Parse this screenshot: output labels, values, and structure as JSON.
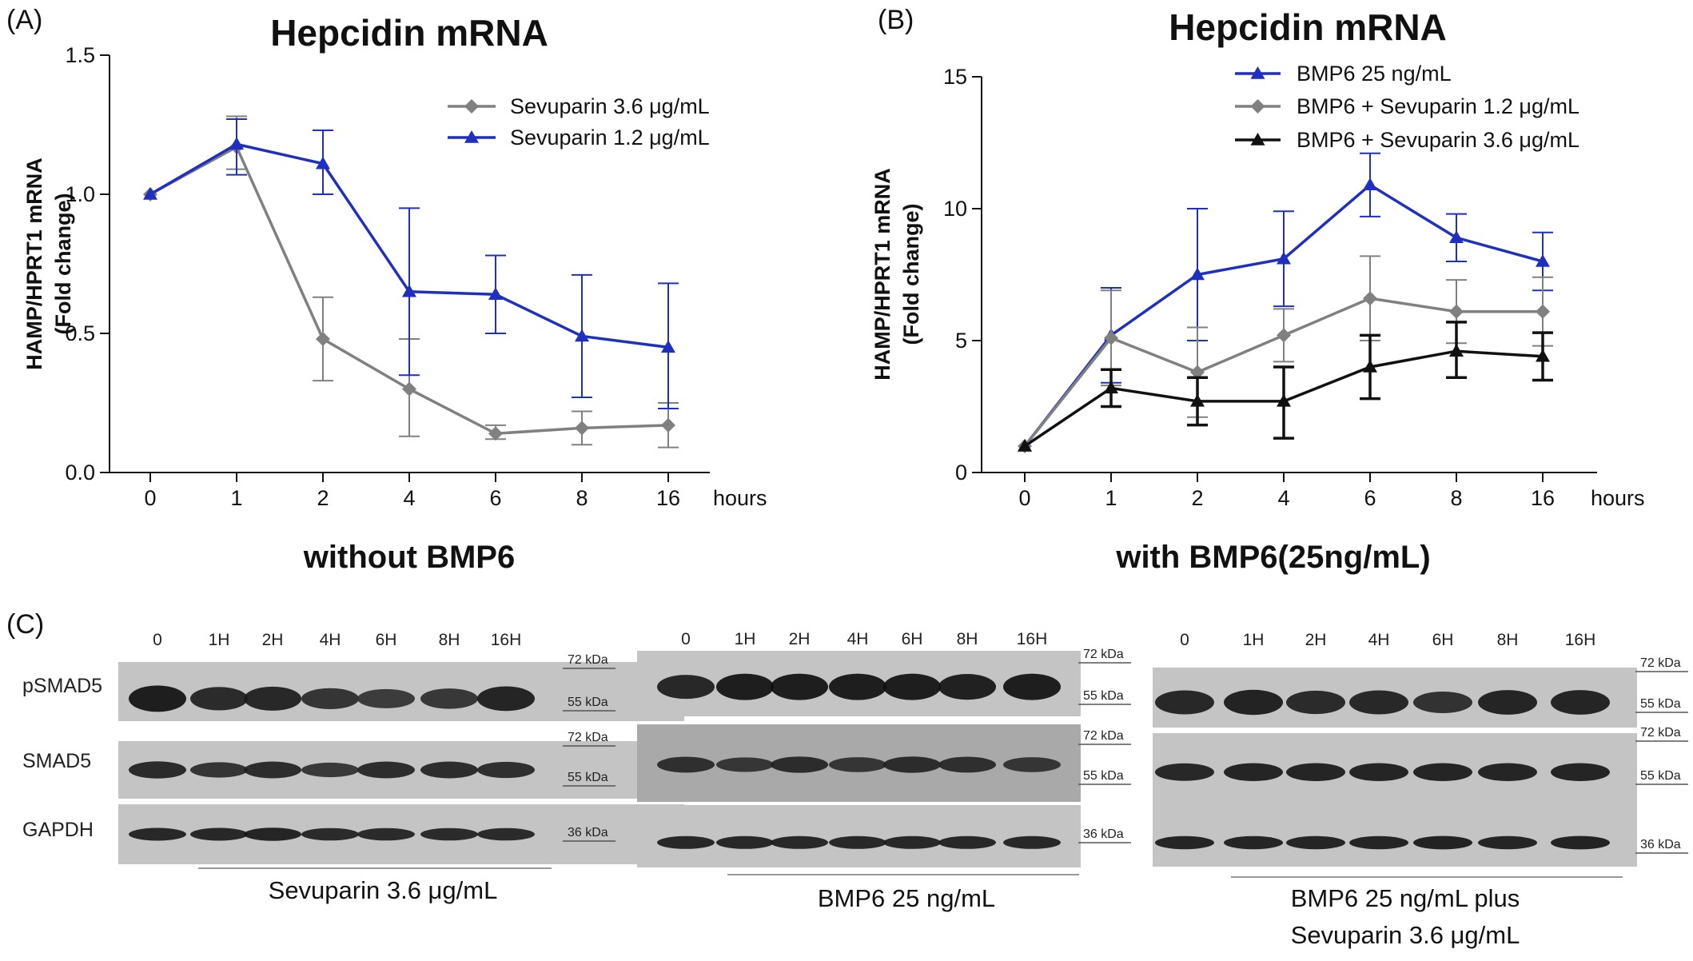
{
  "chart_data": [
    {
      "panel": "(A)",
      "type": "line",
      "title": "Hepcidin mRNA",
      "subtitle": "without BMP6",
      "ylabel_lines": [
        "HAMP/HPRT1 mRNA",
        "(Fold change)"
      ],
      "xlabel": "hours",
      "categories": [
        "0",
        "1",
        "2",
        "4",
        "6",
        "8",
        "16"
      ],
      "ylim": [
        0,
        1.5
      ],
      "yticks": [
        0,
        0.5,
        1.0,
        1.5
      ],
      "ytick_labels": [
        "0.0",
        "0.5",
        "1.0",
        "1.5"
      ],
      "legend_placement": "top-right",
      "series": [
        {
          "name": "Sevuparin 3.6 μg/mL",
          "color": "#808080",
          "marker": "diamond",
          "legend_order": 1,
          "values": [
            1.0,
            1.17,
            0.48,
            0.3,
            0.14,
            0.16,
            0.17
          ],
          "err_upper": [
            1.0,
            1.28,
            0.63,
            0.48,
            0.17,
            0.22,
            0.25
          ],
          "err_lower": [
            1.0,
            1.09,
            0.33,
            0.13,
            0.12,
            0.1,
            0.09
          ]
        },
        {
          "name": "Sevuparin 1.2 μg/mL",
          "color": "#1f2fbf",
          "marker": "triangle",
          "legend_order": 2,
          "values": [
            1.0,
            1.18,
            1.11,
            0.65,
            0.64,
            0.49,
            0.45
          ],
          "err_upper": [
            1.0,
            1.27,
            1.23,
            0.95,
            0.78,
            0.71,
            0.68
          ],
          "err_lower": [
            1.0,
            1.07,
            1.0,
            0.35,
            0.5,
            0.27,
            0.23
          ]
        }
      ]
    },
    {
      "panel": "(B)",
      "type": "line",
      "title": "Hepcidin mRNA",
      "subtitle": "with BMP6(25ng/mL)",
      "ylabel_lines": [
        "HAMP/HPRT1 mRNA",
        "(Fold change)"
      ],
      "xlabel": "hours",
      "categories": [
        "0",
        "1",
        "2",
        "4",
        "6",
        "8",
        "16"
      ],
      "ylim": [
        0,
        15
      ],
      "yticks": [
        0,
        5,
        10,
        15
      ],
      "ytick_labels": [
        "0",
        "5",
        "10",
        "15"
      ],
      "legend_placement": "top-right",
      "series": [
        {
          "name": "BMP6 25 ng/mL",
          "color": "#1f2fbf",
          "marker": "triangle",
          "legend_order": 1,
          "values": [
            1.0,
            5.2,
            7.5,
            8.1,
            10.9,
            8.9,
            8.0
          ],
          "err_upper": [
            1.0,
            7.0,
            10.0,
            9.9,
            12.1,
            9.8,
            9.1
          ],
          "err_lower": [
            1.0,
            3.4,
            5.0,
            6.3,
            9.7,
            8.0,
            6.9
          ]
        },
        {
          "name": "BMP6 + Sevuparin 1.2 μg/mL",
          "color": "#808080",
          "marker": "diamond",
          "legend_order": 2,
          "values": [
            1.0,
            5.1,
            3.8,
            5.2,
            6.6,
            6.1,
            6.1
          ],
          "err_upper": [
            1.0,
            6.9,
            5.5,
            6.2,
            8.2,
            7.3,
            7.4
          ],
          "err_lower": [
            1.0,
            3.3,
            2.1,
            4.2,
            5.0,
            4.9,
            4.8
          ]
        },
        {
          "name": "BMP6 + Sevuparin 3.6 μg/mL",
          "color": "#111111",
          "marker": "triangle",
          "legend_order": 3,
          "values": [
            1.0,
            3.2,
            2.7,
            2.7,
            4.0,
            4.6,
            4.4
          ],
          "err_upper": [
            1.0,
            3.9,
            3.6,
            4.0,
            5.2,
            5.7,
            5.3
          ],
          "err_lower": [
            1.0,
            2.5,
            1.8,
            1.3,
            2.8,
            3.6,
            3.5
          ]
        }
      ]
    }
  ],
  "panel_c": {
    "letter": "(C)",
    "row_labels": [
      "pSMAD5",
      "SMAD5",
      "GAPDH"
    ],
    "blots": [
      {
        "lanes": [
          "0",
          "1H",
          "2H",
          "4H",
          "6H",
          "8H",
          "16H"
        ],
        "kda": [
          "72 kDa",
          "55 kDa",
          "72 kDa",
          "55 kDa",
          "36 kDa"
        ],
        "caption": [
          "Sevuparin 3.6 μg/mL"
        ],
        "intensity": {
          "pSMAD5": [
            1.0,
            0.75,
            0.8,
            0.55,
            0.4,
            0.5,
            0.85
          ],
          "SMAD5": [
            0.75,
            0.55,
            0.7,
            0.45,
            0.7,
            0.7,
            0.65
          ],
          "GAPDH": [
            0.8,
            0.8,
            0.85,
            0.75,
            0.75,
            0.75,
            0.75
          ]
        }
      },
      {
        "lanes": [
          "0",
          "1H",
          "2H",
          "4H",
          "6H",
          "8H",
          "16H"
        ],
        "kda": [
          "72 kDa",
          "55 kDa",
          "72 kDa",
          "55 kDa",
          "36 kDa"
        ],
        "caption": [
          "BMP6 25 ng/mL"
        ],
        "intensity": {
          "pSMAD5": [
            0.8,
            1.0,
            1.0,
            1.0,
            1.0,
            0.95,
            1.0
          ],
          "SMAD5": [
            0.6,
            0.45,
            0.65,
            0.5,
            0.65,
            0.6,
            0.5
          ],
          "GAPDH": [
            0.8,
            0.8,
            0.8,
            0.8,
            0.8,
            0.8,
            0.8
          ]
        }
      },
      {
        "lanes": [
          "0",
          "1H",
          "2H",
          "4H",
          "6H",
          "8H",
          "16H"
        ],
        "kda": [
          "72 kDa",
          "55 kDa",
          "72 kDa",
          "55 kDa",
          "36 kDa"
        ],
        "caption": [
          "BMP6 25 ng/mL plus",
          "Sevuparin 3.6 μg/mL"
        ],
        "intensity": {
          "pSMAD5": [
            0.8,
            0.9,
            0.75,
            0.8,
            0.6,
            0.85,
            0.85
          ],
          "SMAD5": [
            0.8,
            0.85,
            0.85,
            0.85,
            0.85,
            0.85,
            0.85
          ],
          "GAPDH": [
            0.85,
            0.85,
            0.85,
            0.85,
            0.9,
            0.85,
            0.9
          ]
        }
      }
    ]
  }
}
